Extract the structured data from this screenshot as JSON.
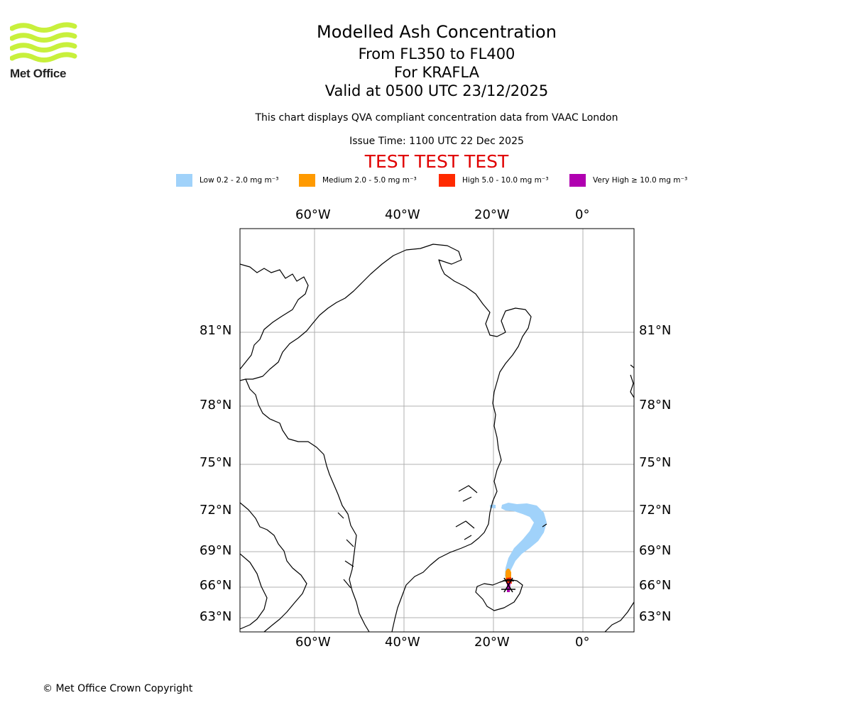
{
  "logo": {
    "text": "Met Office",
    "wave_color": "#c8f03c"
  },
  "titles": {
    "main": "Modelled Ash Concentration",
    "levels": "From FL350 to FL400",
    "volcano": "For KRAFLA",
    "valid": "Valid at 0500 UTC 23/12/2025",
    "compliance": "This chart displays QVA compliant concentration data from VAAC London",
    "issue": "Issue Time: 1100 UTC 22 Dec 2025",
    "test_banner": "TEST TEST TEST"
  },
  "colors": {
    "test_banner": "#e00000",
    "grid": "#b0b0b0",
    "coast": "#000000"
  },
  "legend": [
    {
      "label": "Low 0.2 - 2.0 mg m⁻³",
      "color": "#a0d2fa"
    },
    {
      "label": "Medium 2.0 - 5.0 mg m⁻³",
      "color": "#ff9a00"
    },
    {
      "label": "High 5.0 - 10.0 mg m⁻³",
      "color": "#ff2a00"
    },
    {
      "label": "Very High ≥ 10.0 mg m⁻³",
      "color": "#b000b0"
    }
  ],
  "map": {
    "lon_labels": [
      "60°W",
      "40°W",
      "20°W",
      "0°"
    ],
    "lat_labels": [
      "81°N",
      "78°N",
      "75°N",
      "72°N",
      "69°N",
      "66°N",
      "63°N"
    ]
  },
  "copyright": "© Met Office Crown Copyright"
}
